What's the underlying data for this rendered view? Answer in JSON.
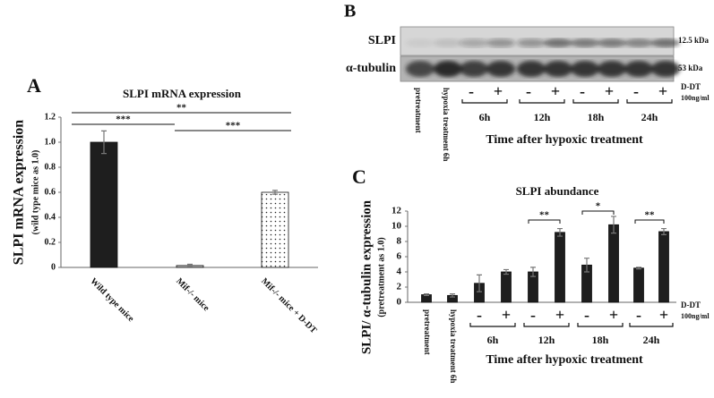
{
  "chart_data": [
    {
      "type": "bar",
      "panel": "A",
      "title": "SLPI mRNA expression",
      "ylabel": "SLPI mRNA expression",
      "ylabel_sub": "(wild type mice as 1.0)",
      "categories": [
        "Wild type mice",
        "Mif-/- mice",
        "Mif-/- mice + D-DT"
      ],
      "values": [
        1.0,
        0.015,
        0.6
      ],
      "errors": [
        0.09,
        0.01,
        0.015
      ],
      "colors": [
        "#1e1e1e",
        "#bdbdbd",
        "#ffffff"
      ],
      "patterns": [
        "solid",
        "solid",
        "dots"
      ],
      "ylim": [
        0,
        1.2
      ],
      "yticks": [
        0,
        0.2,
        0.4,
        0.6,
        0.8,
        {
          "value": 1,
          "label": "1.0"
        },
        1.2
      ],
      "annotations": [
        "**",
        "***",
        "***"
      ]
    },
    {
      "type": "bar",
      "panel": "C",
      "title": "SLPI abundance",
      "ylabel": "SLPI/ α-tubulin expression",
      "ylabel_sub": "(pretreatment as 1.0)",
      "categories": [
        "pretreatment",
        "hypoxia treatment 6h",
        "-",
        "+",
        "-",
        "+",
        "-",
        "+",
        "-",
        "+"
      ],
      "values": [
        1.0,
        0.9,
        2.5,
        4.0,
        4.0,
        9.2,
        4.9,
        10.2,
        4.5,
        9.3
      ],
      "errors": [
        0.1,
        0.2,
        1.1,
        0.3,
        0.6,
        0.5,
        0.9,
        1.1,
        0.1,
        0.4
      ],
      "color": "#1e1e1e",
      "ylim": [
        0,
        12
      ],
      "yticks": [
        0,
        2,
        4,
        6,
        8,
        10,
        12
      ],
      "groups": [
        "6h",
        "12h",
        "18h",
        "24h"
      ],
      "treatment": "D-DT",
      "dose": "100ng/ml",
      "xlabel": "Time after hypoxic treatment",
      "annotations": [
        "**",
        "*",
        "**"
      ]
    }
  ],
  "blot": {
    "panel": "B",
    "rows": [
      {
        "label": "SLPI",
        "size": "12.5 kDa"
      },
      {
        "label": "α-tubulin",
        "size": "53 kDa"
      }
    ],
    "lanes": [
      "pretreatment",
      "hypoxia treatment 6h",
      "-",
      "+",
      "-",
      "+",
      "-",
      "+",
      "-",
      "+"
    ],
    "groups": [
      "6h",
      "12h",
      "18h",
      "24h"
    ],
    "treatment": "D-DT",
    "dose": "100ng/ml",
    "xlabel": "Time after hypoxic treatment"
  }
}
